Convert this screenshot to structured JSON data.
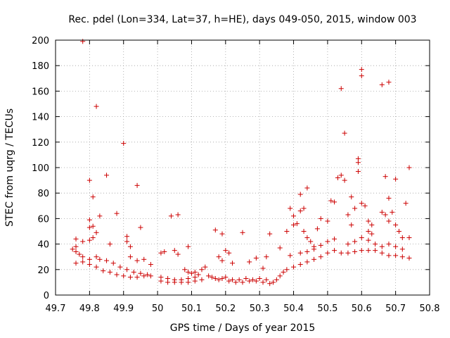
{
  "chart_data": {
    "type": "scatter",
    "title": "Rec. pdel (Lon=334, Lat=37, h=HE), days 049-050, 2015, window 003",
    "xlabel": "GPS time / Days of year 2015",
    "ylabel": "STEC from uqrg / TECUs",
    "xlim": [
      49.7,
      50.8
    ],
    "ylim": [
      0,
      200
    ],
    "xticks": [
      "49.7",
      "49.8",
      "49.9",
      "50",
      "50.1",
      "50.2",
      "50.3",
      "50.4",
      "50.5",
      "50.6",
      "50.7",
      "50.8"
    ],
    "yticks": [
      "0",
      "20",
      "40",
      "60",
      "80",
      "100",
      "120",
      "140",
      "160",
      "180",
      "200"
    ],
    "grid": true,
    "marker": "+",
    "color": "#cc0000",
    "points": [
      [
        49.78,
        199
      ],
      [
        49.82,
        148
      ],
      [
        49.9,
        119
      ],
      [
        49.85,
        94
      ],
      [
        49.8,
        90
      ],
      [
        49.81,
        77
      ],
      [
        49.94,
        86
      ],
      [
        49.88,
        64
      ],
      [
        49.83,
        62
      ],
      [
        49.8,
        59
      ],
      [
        49.8,
        53
      ],
      [
        49.81,
        54
      ],
      [
        49.82,
        49
      ],
      [
        49.81,
        45
      ],
      [
        49.8,
        43
      ],
      [
        49.76,
        44
      ],
      [
        49.78,
        42
      ],
      [
        49.91,
        46
      ],
      [
        49.91,
        42
      ],
      [
        49.95,
        53
      ],
      [
        49.86,
        40
      ],
      [
        49.75,
        36
      ],
      [
        49.76,
        34
      ],
      [
        49.77,
        32
      ],
      [
        49.76,
        38
      ],
      [
        49.78,
        30
      ],
      [
        49.8,
        28
      ],
      [
        49.82,
        30
      ],
      [
        49.83,
        28
      ],
      [
        49.85,
        27
      ],
      [
        49.87,
        25
      ],
      [
        49.89,
        22
      ],
      [
        49.91,
        20
      ],
      [
        49.93,
        18
      ],
      [
        49.95,
        17
      ],
      [
        49.97,
        16
      ],
      [
        49.76,
        25
      ],
      [
        49.78,
        26
      ],
      [
        49.8,
        24
      ],
      [
        49.82,
        22
      ],
      [
        49.84,
        19
      ],
      [
        49.86,
        18
      ],
      [
        49.88,
        16
      ],
      [
        49.9,
        15
      ],
      [
        49.92,
        14
      ],
      [
        49.94,
        14
      ],
      [
        49.96,
        15
      ],
      [
        49.98,
        15
      ],
      [
        49.92,
        30
      ],
      [
        49.94,
        27
      ],
      [
        49.96,
        28
      ],
      [
        49.98,
        24
      ],
      [
        49.92,
        38
      ],
      [
        50.01,
        33
      ],
      [
        50.02,
        34
      ],
      [
        50.05,
        35
      ],
      [
        50.06,
        32
      ],
      [
        50.09,
        38
      ],
      [
        50.04,
        62
      ],
      [
        50.06,
        63
      ],
      [
        50.01,
        14
      ],
      [
        50.03,
        13
      ],
      [
        50.05,
        12
      ],
      [
        50.07,
        12
      ],
      [
        50.09,
        13
      ],
      [
        50.11,
        14
      ],
      [
        50.01,
        11
      ],
      [
        50.03,
        10
      ],
      [
        50.05,
        10
      ],
      [
        50.07,
        10
      ],
      [
        50.09,
        10
      ],
      [
        50.11,
        11
      ],
      [
        50.13,
        12
      ],
      [
        50.08,
        20
      ],
      [
        50.09,
        18
      ],
      [
        50.1,
        17
      ],
      [
        50.11,
        18
      ],
      [
        50.12,
        16
      ],
      [
        50.13,
        20
      ],
      [
        50.14,
        22
      ],
      [
        50.15,
        15
      ],
      [
        50.16,
        14
      ],
      [
        50.17,
        13
      ],
      [
        50.18,
        12
      ],
      [
        50.19,
        13
      ],
      [
        50.2,
        14
      ],
      [
        50.17,
        51
      ],
      [
        50.19,
        48
      ],
      [
        50.18,
        30
      ],
      [
        50.19,
        27
      ],
      [
        50.2,
        35
      ],
      [
        50.21,
        33
      ],
      [
        50.22,
        25
      ],
      [
        50.21,
        11
      ],
      [
        50.23,
        10
      ],
      [
        50.25,
        10
      ],
      [
        50.27,
        11
      ],
      [
        50.29,
        11
      ],
      [
        50.31,
        10
      ],
      [
        50.22,
        12
      ],
      [
        50.24,
        12
      ],
      [
        50.26,
        13
      ],
      [
        50.28,
        12
      ],
      [
        50.3,
        13
      ],
      [
        50.32,
        12
      ],
      [
        50.25,
        49
      ],
      [
        50.27,
        26
      ],
      [
        50.29,
        29
      ],
      [
        50.31,
        21
      ],
      [
        50.33,
        48
      ],
      [
        50.32,
        30
      ],
      [
        50.33,
        9
      ],
      [
        50.34,
        10
      ],
      [
        50.35,
        12
      ],
      [
        50.36,
        15
      ],
      [
        50.37,
        18
      ],
      [
        50.38,
        20
      ],
      [
        50.36,
        37
      ],
      [
        50.38,
        50
      ],
      [
        50.39,
        31
      ],
      [
        50.4,
        22
      ],
      [
        50.4,
        55
      ],
      [
        50.4,
        62
      ],
      [
        50.39,
        68
      ],
      [
        50.41,
        56
      ],
      [
        50.42,
        66
      ],
      [
        50.42,
        79
      ],
      [
        50.43,
        68
      ],
      [
        50.44,
        84
      ],
      [
        50.43,
        50
      ],
      [
        50.44,
        45
      ],
      [
        50.45,
        42
      ],
      [
        50.46,
        38
      ],
      [
        50.47,
        52
      ],
      [
        50.48,
        60
      ],
      [
        50.42,
        24
      ],
      [
        50.44,
        26
      ],
      [
        50.46,
        28
      ],
      [
        50.48,
        30
      ],
      [
        50.5,
        33
      ],
      [
        50.52,
        35
      ],
      [
        50.42,
        33
      ],
      [
        50.44,
        34
      ],
      [
        50.46,
        36
      ],
      [
        50.48,
        39
      ],
      [
        50.5,
        42
      ],
      [
        50.52,
        44
      ],
      [
        50.5,
        58
      ],
      [
        50.51,
        74
      ],
      [
        50.52,
        73
      ],
      [
        50.53,
        92
      ],
      [
        50.54,
        94
      ],
      [
        50.55,
        90
      ],
      [
        50.54,
        162
      ],
      [
        50.55,
        127
      ],
      [
        50.57,
        77
      ],
      [
        50.58,
        68
      ],
      [
        50.56,
        63
      ],
      [
        50.57,
        55
      ],
      [
        50.59,
        107
      ],
      [
        50.59,
        104
      ],
      [
        50.59,
        97
      ],
      [
        50.6,
        177
      ],
      [
        50.6,
        172
      ],
      [
        50.6,
        72
      ],
      [
        50.61,
        70
      ],
      [
        50.62,
        58
      ],
      [
        50.63,
        55
      ],
      [
        50.62,
        50
      ],
      [
        50.63,
        48
      ],
      [
        50.54,
        33
      ],
      [
        50.56,
        33
      ],
      [
        50.58,
        34
      ],
      [
        50.6,
        35
      ],
      [
        50.62,
        35
      ],
      [
        50.64,
        35
      ],
      [
        50.56,
        40
      ],
      [
        50.58,
        42
      ],
      [
        50.6,
        45
      ],
      [
        50.62,
        43
      ],
      [
        50.64,
        40
      ],
      [
        50.66,
        38
      ],
      [
        50.66,
        165
      ],
      [
        50.67,
        93
      ],
      [
        50.68,
        167
      ],
      [
        50.68,
        76
      ],
      [
        50.69,
        65
      ],
      [
        50.7,
        91
      ],
      [
        50.66,
        65
      ],
      [
        50.67,
        63
      ],
      [
        50.68,
        58
      ],
      [
        50.7,
        55
      ],
      [
        50.71,
        50
      ],
      [
        50.72,
        45
      ],
      [
        50.66,
        33
      ],
      [
        50.68,
        31
      ],
      [
        50.7,
        31
      ],
      [
        50.72,
        30
      ],
      [
        50.74,
        29
      ],
      [
        50.68,
        40
      ],
      [
        50.7,
        38
      ],
      [
        50.72,
        36
      ],
      [
        50.73,
        72
      ],
      [
        50.74,
        100
      ],
      [
        50.74,
        45
      ]
    ]
  }
}
